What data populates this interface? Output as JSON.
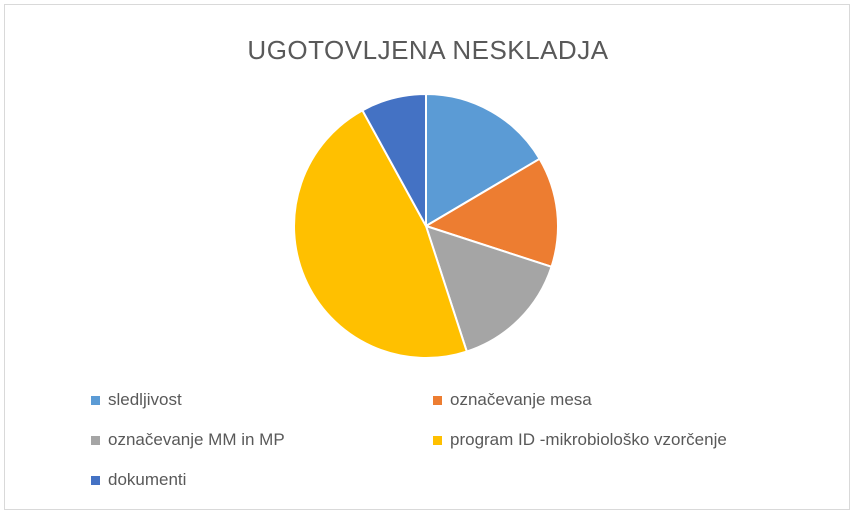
{
  "chart_data": {
    "type": "pie",
    "title": "UGOTOVLJENA NESKLADJA",
    "categories": [
      "sledljivost",
      "označevanje mesa",
      "označevanje MM in MP",
      "program ID -mikrobiološko vzorčenje",
      "dokumenti"
    ],
    "values": [
      16.5,
      13.5,
      15,
      47,
      8
    ],
    "colors": [
      "#5B9BD5",
      "#ED7D31",
      "#A5A5A5",
      "#FFC000",
      "#4472C4"
    ],
    "legend_position": "bottom"
  }
}
